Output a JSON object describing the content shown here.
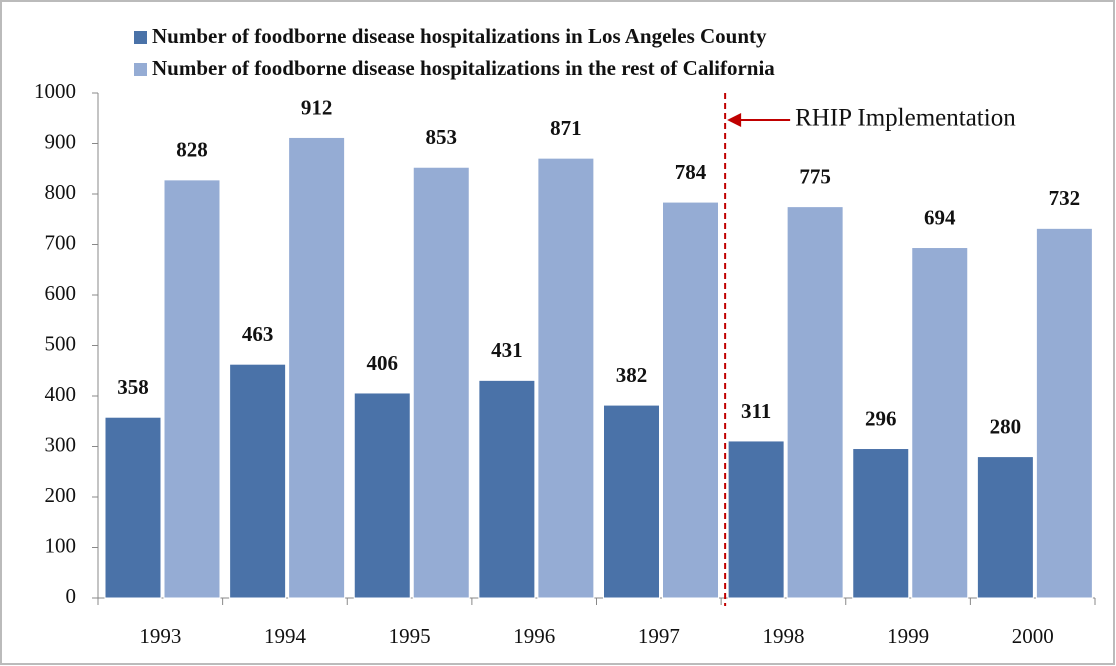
{
  "chart_data": {
    "type": "bar",
    "categories": [
      "1993",
      "1994",
      "1995",
      "1996",
      "1997",
      "1998",
      "1999",
      "2000"
    ],
    "series": [
      {
        "name": "Number of foodborne disease hospitalizations in Los Angeles County",
        "color": "#4a72a8",
        "values": [
          358,
          463,
          406,
          431,
          382,
          311,
          296,
          280
        ]
      },
      {
        "name": "Number of foodborne disease hospitalizations in the rest of California",
        "color": "#95acd4",
        "values": [
          828,
          912,
          853,
          871,
          784,
          775,
          694,
          732
        ]
      }
    ],
    "ylim": [
      0,
      1000
    ],
    "yticks": [
      0,
      100,
      200,
      300,
      400,
      500,
      600,
      700,
      800,
      900,
      1000
    ],
    "annotation": "RHIP Implementation"
  }
}
